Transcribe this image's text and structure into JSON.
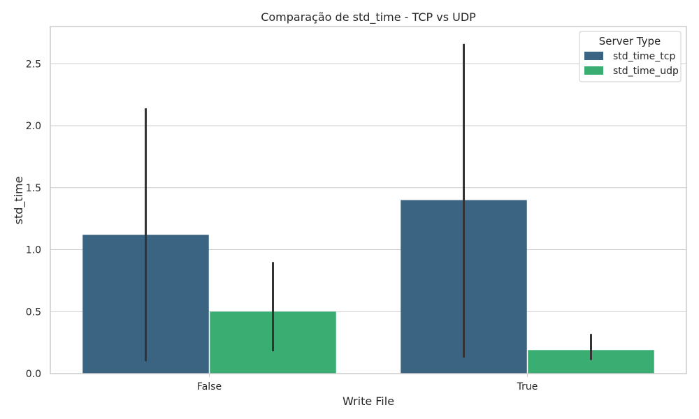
{
  "chart_data": {
    "type": "bar",
    "title": "Comparação de std_time - TCP vs UDP",
    "xlabel": "Write File",
    "ylabel": "std_time",
    "categories": [
      "False",
      "True"
    ],
    "ylim": [
      0,
      2.8
    ],
    "yticks": [
      0.0,
      0.5,
      1.0,
      1.5,
      2.0,
      2.5
    ],
    "ytick_labels": [
      "0.0",
      "0.5",
      "1.0",
      "1.5",
      "2.0",
      "2.5"
    ],
    "grid": "horizontal",
    "legend": {
      "title": "Server Type",
      "placement": "top-right"
    },
    "series": [
      {
        "name": "std_time_tcp",
        "color": "#3b6482",
        "values": [
          1.12,
          1.4
        ],
        "error_low": [
          0.1,
          0.13
        ],
        "error_high": [
          2.14,
          2.66
        ]
      },
      {
        "name": "std_time_udp",
        "color": "#3aad73",
        "values": [
          0.5,
          0.19
        ],
        "error_low": [
          0.18,
          0.11
        ],
        "error_high": [
          0.9,
          0.32
        ]
      }
    ],
    "error_bar_color": "#333333",
    "axes_color": "#cccccc"
  }
}
